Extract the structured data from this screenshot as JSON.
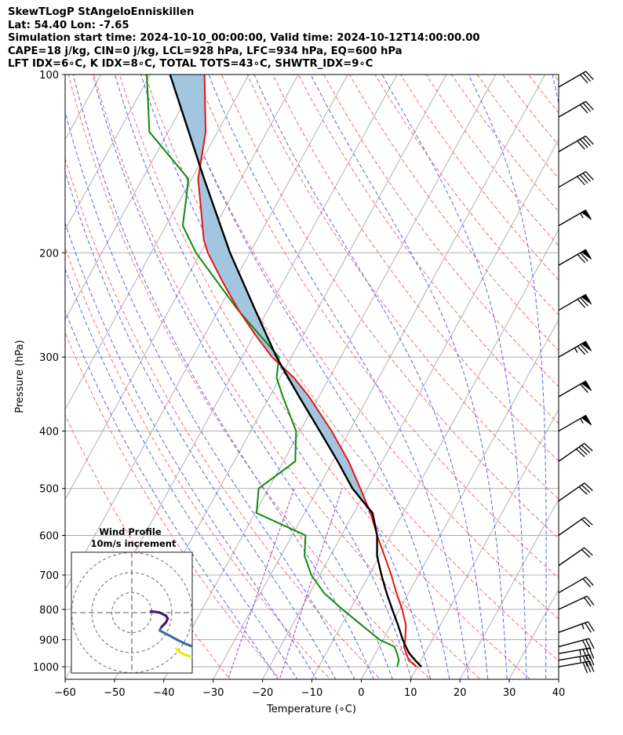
{
  "header": {
    "line1": "SkewTLogP StAngeloEnniskillen",
    "line2": "Lat: 54.40   Lon: -7.65",
    "line3": "Simulation start time: 2024-10-10_00:00:00, Valid time: 2024-10-12T14:00:00.00",
    "line4": "CAPE=18 j/kg, CIN=0 j/kg, LCL=928 hPa, LFC=934 hPa, EQ=600 hPa",
    "line5": "LFT IDX=6∘C, K IDX=8∘C, TOTAL TOTS=43∘C, SHWTR_IDX=9∘C"
  },
  "colors": {
    "temperature": "#e8150f",
    "dewpoint": "#0d8a0d",
    "parcel": "#000000",
    "cape_fill": "#a3c6e0",
    "dry_adiabat": "#f07070",
    "moist_adiabat": "#5566ee",
    "mixing_ratio": "#9a44c8",
    "isotherm": "#a8a8a8"
  },
  "chart_data": {
    "type": "line",
    "title": "",
    "xlabel": "Temperature (∘C)",
    "ylabel": "Pressure (hPa)",
    "xlim": [
      -60,
      40
    ],
    "ylim": [
      1050,
      100
    ],
    "x_ticks": [
      "−60",
      "−50",
      "−40",
      "−30",
      "−20",
      "−10",
      "0",
      "10",
      "20",
      "30",
      "40"
    ],
    "y_ticks": [
      "100",
      "200",
      "300",
      "400",
      "500",
      "600",
      "700",
      "800",
      "900",
      "1000"
    ],
    "y_scale": "log",
    "skew": "isotherms tilted 45°",
    "grid": true,
    "series": [
      {
        "key": "temperature",
        "points": [
          [
            1000,
            9.8
          ],
          [
            975,
            7.5
          ],
          [
            950,
            6.3
          ],
          [
            925,
            5.0
          ],
          [
            900,
            4.5
          ],
          [
            850,
            3.0
          ],
          [
            800,
            0.5
          ],
          [
            750,
            -2.5
          ],
          [
            700,
            -5.5
          ],
          [
            650,
            -9.0
          ],
          [
            600,
            -12.8
          ],
          [
            550,
            -16.6
          ],
          [
            500,
            -21.4
          ],
          [
            450,
            -26.8
          ],
          [
            400,
            -33.6
          ],
          [
            350,
            -42.0
          ],
          [
            325,
            -47.2
          ],
          [
            300,
            -53.9
          ],
          [
            275,
            -59.8
          ],
          [
            250,
            -65.9
          ],
          [
            225,
            -72.0
          ],
          [
            200,
            -78.5
          ],
          [
            190,
            -80.8
          ],
          [
            170,
            -84.5
          ],
          [
            150,
            -88.7
          ],
          [
            125,
            -92.4
          ],
          [
            110,
            -96.2
          ],
          [
            100,
            -99.0
          ]
        ]
      },
      {
        "key": "dewpoint",
        "points": [
          [
            1000,
            5.9
          ],
          [
            975,
            5.5
          ],
          [
            950,
            4.4
          ],
          [
            925,
            3.1
          ],
          [
            900,
            -0.7
          ],
          [
            850,
            -6.0
          ],
          [
            800,
            -11.6
          ],
          [
            750,
            -17.2
          ],
          [
            700,
            -21.7
          ],
          [
            650,
            -25.2
          ],
          [
            600,
            -27.3
          ],
          [
            550,
            -39.7
          ],
          [
            500,
            -42.0
          ],
          [
            450,
            -37.6
          ],
          [
            400,
            -40.8
          ],
          [
            350,
            -47.3
          ],
          [
            325,
            -50.7
          ],
          [
            300,
            -52.5
          ],
          [
            250,
            -66.0
          ],
          [
            200,
            -80.9
          ],
          [
            180,
            -86.6
          ],
          [
            160,
            -89.2
          ],
          [
            150,
            -90.7
          ],
          [
            125,
            -103.8
          ],
          [
            100,
            -110.7
          ]
        ]
      },
      {
        "key": "parcel",
        "points": [
          [
            1000,
            10.8
          ],
          [
            975,
            8.8
          ],
          [
            950,
            6.9
          ],
          [
            928,
            5.6
          ],
          [
            900,
            4.0
          ],
          [
            850,
            1.4
          ],
          [
            800,
            -1.5
          ],
          [
            750,
            -4.5
          ],
          [
            700,
            -7.5
          ],
          [
            650,
            -10.5
          ],
          [
            600,
            -12.8
          ],
          [
            550,
            -16.2
          ],
          [
            500,
            -23.0
          ],
          [
            450,
            -29.0
          ],
          [
            400,
            -36.0
          ],
          [
            350,
            -44.0
          ],
          [
            300,
            -53.0
          ],
          [
            250,
            -62.5
          ],
          [
            200,
            -74.0
          ],
          [
            150,
            -87.5
          ],
          [
            100,
            -106.0
          ]
        ]
      }
    ],
    "wind_barbs": [
      {
        "p": 1000,
        "dir": 260,
        "speed": 30
      },
      {
        "p": 975,
        "dir": 260,
        "speed": 35
      },
      {
        "p": 950,
        "dir": 260,
        "speed": 35
      },
      {
        "p": 925,
        "dir": 255,
        "speed": 30
      },
      {
        "p": 875,
        "dir": 250,
        "speed": 25
      },
      {
        "p": 800,
        "dir": 245,
        "speed": 20
      },
      {
        "p": 750,
        "dir": 240,
        "speed": 20
      },
      {
        "p": 675,
        "dir": 235,
        "speed": 20
      },
      {
        "p": 600,
        "dir": 235,
        "speed": 20
      },
      {
        "p": 525,
        "dir": 235,
        "speed": 30
      },
      {
        "p": 450,
        "dir": 235,
        "speed": 40
      },
      {
        "p": 400,
        "dir": 240,
        "speed": 55
      },
      {
        "p": 350,
        "dir": 240,
        "speed": 60
      },
      {
        "p": 300,
        "dir": 240,
        "speed": 75
      },
      {
        "p": 250,
        "dir": 240,
        "speed": 70
      },
      {
        "p": 210,
        "dir": 240,
        "speed": 70
      },
      {
        "p": 180,
        "dir": 240,
        "speed": 55
      },
      {
        "p": 155,
        "dir": 240,
        "speed": 40
      },
      {
        "p": 135,
        "dir": 240,
        "speed": 40
      },
      {
        "p": 118,
        "dir": 240,
        "speed": 30
      },
      {
        "p": 105,
        "dir": 240,
        "speed": 30
      }
    ],
    "hodograph": {
      "title": "Wind Profile",
      "subtitle": "10m/s increment",
      "rings": [
        10,
        20,
        30
      ],
      "segments": [
        {
          "color": "#e8e822",
          "points": [
            [
              30.5,
              -22.0
            ],
            [
              26.0,
              -21.0
            ],
            [
              23.0,
              -19.0
            ],
            [
              22.0,
              -17.5
            ]
          ]
        },
        {
          "color": "#3a6fa0",
          "points": [
            [
              30.5,
              -17.0
            ],
            [
              26.5,
              -15.5
            ],
            [
              22.5,
              -13.5
            ],
            [
              17.0,
              -10.5
            ],
            [
              14.0,
              -9.0
            ],
            [
              14.5,
              -7.5
            ]
          ]
        },
        {
          "color": "#46196e",
          "points": [
            [
              14.5,
              -7.5
            ],
            [
              17.0,
              -5.0
            ],
            [
              18.0,
              -3.0
            ],
            [
              17.0,
              -1.5
            ],
            [
              14.0,
              0.0
            ],
            [
              11.0,
              0.5
            ],
            [
              9.0,
              0.5
            ]
          ]
        }
      ]
    }
  }
}
